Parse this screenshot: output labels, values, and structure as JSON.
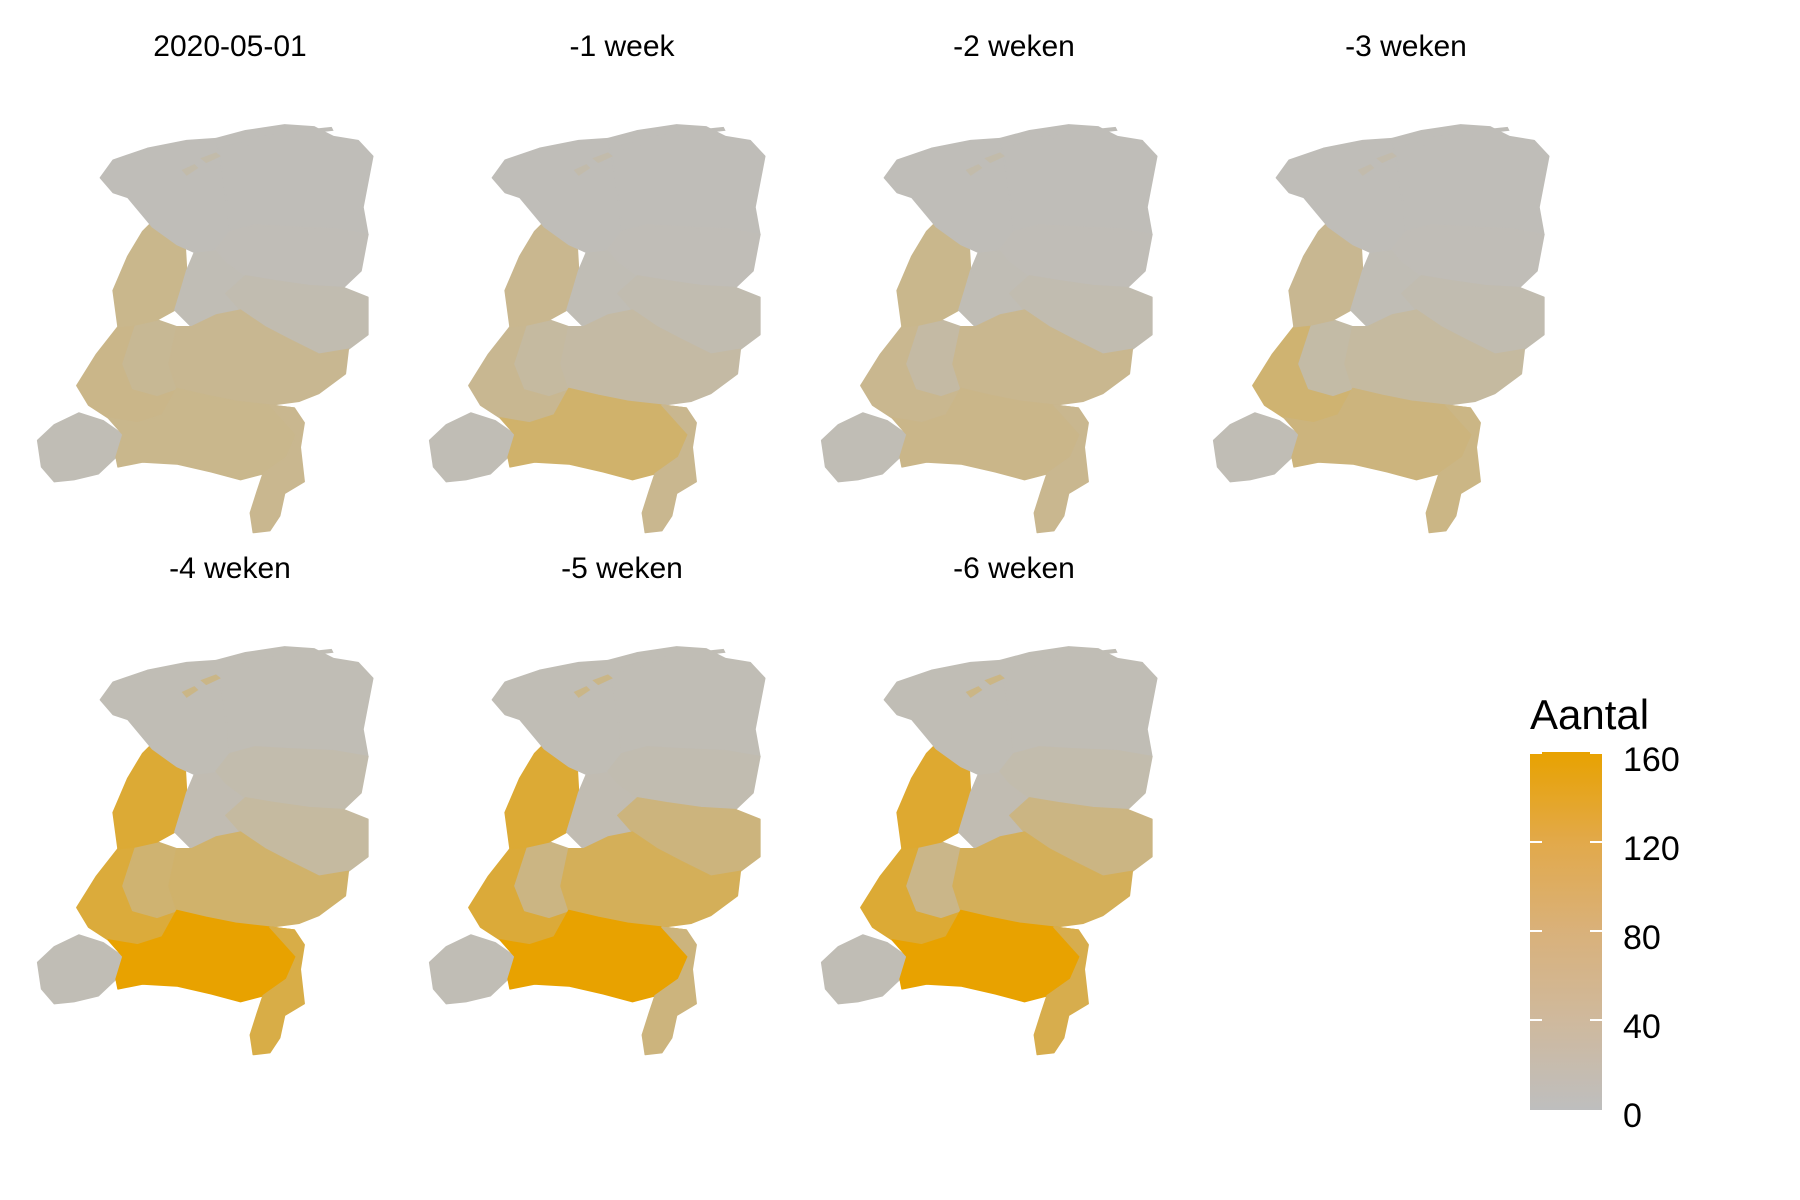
{
  "panels": [
    {
      "title": "2020-05-01",
      "values": {
        "GR": 5,
        "FR": 5,
        "DR": 6,
        "OV": 12,
        "FL": 8,
        "GE": 38,
        "UT": 35,
        "NH": 42,
        "ZH": 45,
        "ZE": 8,
        "NB": 42,
        "LI": 40
      }
    },
    {
      "title": "-1 week",
      "values": {
        "GR": 5,
        "FR": 5,
        "DR": 6,
        "OV": 12,
        "FL": 8,
        "GE": 22,
        "UT": 25,
        "NH": 40,
        "ZH": 38,
        "ZE": 8,
        "NB": 70,
        "LI": 40
      }
    },
    {
      "title": "-2 weken",
      "values": {
        "GR": 5,
        "FR": 5,
        "DR": 6,
        "OV": 12,
        "FL": 8,
        "GE": 40,
        "UT": 22,
        "NH": 42,
        "ZH": 40,
        "ZE": 8,
        "NB": 45,
        "LI": 40
      }
    },
    {
      "title": "-3 weken",
      "values": {
        "GR": 5,
        "FR": 5,
        "DR": 6,
        "OV": 12,
        "FL": 8,
        "GE": 25,
        "UT": 20,
        "NH": 38,
        "ZH": 65,
        "ZE": 8,
        "NB": 55,
        "LI": 48
      }
    },
    {
      "title": "-4 weken",
      "values": {
        "GR": 8,
        "FR": 8,
        "DR": 14,
        "OV": 25,
        "FL": 10,
        "GE": 70,
        "UT": 65,
        "NH": 115,
        "ZH": 110,
        "ZE": 8,
        "NB": 160,
        "LI": 100
      }
    },
    {
      "title": "-5 weken",
      "values": {
        "GR": 8,
        "FR": 8,
        "DR": 12,
        "OV": 55,
        "FL": 10,
        "GE": 85,
        "UT": 50,
        "NH": 115,
        "ZH": 112,
        "ZE": 8,
        "NB": 160,
        "LI": 55
      }
    },
    {
      "title": "-6 weken",
      "values": {
        "GR": 8,
        "FR": 8,
        "DR": 14,
        "OV": 50,
        "FL": 10,
        "GE": 85,
        "UT": 45,
        "NH": 120,
        "ZH": 115,
        "ZE": 8,
        "NB": 160,
        "LI": 95
      }
    }
  ],
  "legend": {
    "title": "Aantal",
    "min": 0,
    "max": 160,
    "ticks": [
      "160",
      "120",
      "80",
      "40",
      "0"
    ],
    "tick_values": [
      160,
      120,
      80,
      40,
      0
    ],
    "colors": {
      "low": "#bebebe",
      "high": "#e8a200"
    }
  }
}
